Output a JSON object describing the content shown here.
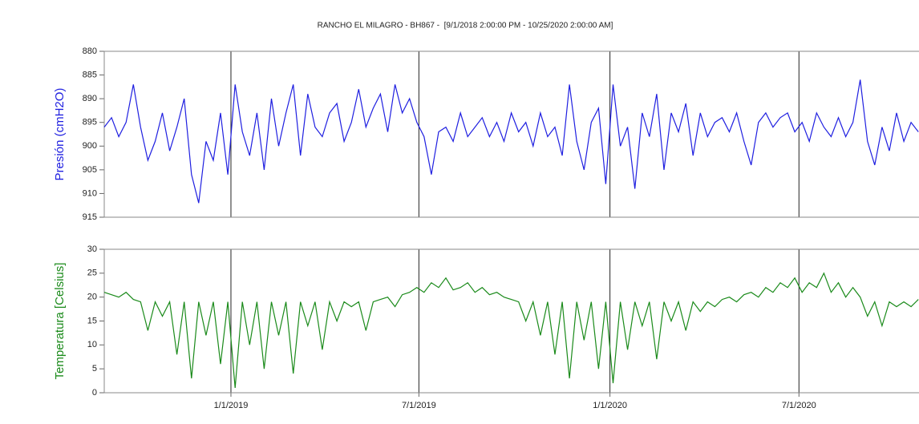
{
  "chart_data": {
    "type": "line",
    "title": "RANCHO EL MILAGRO - BH867 -  [9/1/2018 2:00:00 PM - 10/25/2020 2:00:00 AM]",
    "xlim": [
      "2018-09-01",
      "2020-10-25"
    ],
    "xticks": [
      {
        "value": "2019-01-01",
        "label": "1/1/2019"
      },
      {
        "value": "2019-07-01",
        "label": "7/1/2019"
      },
      {
        "value": "2020-01-01",
        "label": "1/1/2020"
      },
      {
        "value": "2020-07-01",
        "label": "7/1/2020"
      }
    ],
    "x": [
      "2018-09-01",
      "2018-09-08",
      "2018-09-15",
      "2018-09-22",
      "2018-09-29",
      "2018-10-06",
      "2018-10-13",
      "2018-10-20",
      "2018-10-27",
      "2018-11-03",
      "2018-11-10",
      "2018-11-17",
      "2018-11-24",
      "2018-12-01",
      "2018-12-08",
      "2018-12-15",
      "2018-12-22",
      "2018-12-29",
      "2019-01-05",
      "2019-01-12",
      "2019-01-19",
      "2019-01-26",
      "2019-02-02",
      "2019-02-09",
      "2019-02-16",
      "2019-02-23",
      "2019-03-02",
      "2019-03-09",
      "2019-03-16",
      "2019-03-23",
      "2019-03-30",
      "2019-04-06",
      "2019-04-13",
      "2019-04-20",
      "2019-04-27",
      "2019-05-04",
      "2019-05-11",
      "2019-05-18",
      "2019-05-25",
      "2019-06-01",
      "2019-06-08",
      "2019-06-15",
      "2019-06-22",
      "2019-06-29",
      "2019-07-06",
      "2019-07-13",
      "2019-07-20",
      "2019-07-27",
      "2019-08-03",
      "2019-08-10",
      "2019-08-17",
      "2019-08-24",
      "2019-08-31",
      "2019-09-07",
      "2019-09-14",
      "2019-09-21",
      "2019-09-28",
      "2019-10-05",
      "2019-10-12",
      "2019-10-19",
      "2019-10-26",
      "2019-11-02",
      "2019-11-09",
      "2019-11-16",
      "2019-11-23",
      "2019-11-30",
      "2019-12-07",
      "2019-12-14",
      "2019-12-21",
      "2019-12-28",
      "2020-01-04",
      "2020-01-11",
      "2020-01-18",
      "2020-01-25",
      "2020-02-01",
      "2020-02-08",
      "2020-02-15",
      "2020-02-22",
      "2020-02-29",
      "2020-03-07",
      "2020-03-14",
      "2020-03-21",
      "2020-03-28",
      "2020-04-04",
      "2020-04-11",
      "2020-04-18",
      "2020-04-25",
      "2020-05-02",
      "2020-05-09",
      "2020-05-16",
      "2020-05-23",
      "2020-05-30",
      "2020-06-06",
      "2020-06-13",
      "2020-06-20",
      "2020-06-27",
      "2020-07-04",
      "2020-07-11",
      "2020-07-18",
      "2020-07-25",
      "2020-08-01",
      "2020-08-08",
      "2020-08-15",
      "2020-08-22",
      "2020-08-29",
      "2020-09-05",
      "2020-09-12",
      "2020-09-19",
      "2020-09-26",
      "2020-10-03",
      "2020-10-10",
      "2020-10-17",
      "2020-10-24"
    ],
    "panels": [
      {
        "ylabel": "Presión (cmH2O)",
        "ylim": [
          915,
          880
        ],
        "yticks": [
          880,
          885,
          890,
          895,
          900,
          905,
          910,
          915
        ],
        "series": [
          {
            "color": "#1f1fe0",
            "values": [
              896,
              894,
              898,
              895,
              887,
              896,
              903,
              899,
              893,
              901,
              896,
              890,
              906,
              912,
              899,
              903,
              893,
              906,
              887,
              897,
              902,
              893,
              905,
              890,
              900,
              893,
              887,
              902,
              889,
              896,
              898,
              893,
              891,
              899,
              895,
              888,
              896,
              892,
              889,
              897,
              887,
              893,
              890,
              895,
              898,
              906,
              897,
              896,
              899,
              893,
              898,
              896,
              894,
              898,
              895,
              899,
              893,
              897,
              895,
              900,
              893,
              898,
              896,
              902,
              887,
              899,
              905,
              895,
              892,
              908,
              887,
              900,
              896,
              909,
              893,
              898,
              889,
              905,
              893,
              897,
              891,
              902,
              893,
              898,
              895,
              894,
              897,
              893,
              899,
              904,
              895,
              893,
              896,
              894,
              893,
              897,
              895,
              899,
              893,
              896,
              898,
              894,
              898,
              895,
              886,
              899,
              904,
              896,
              901,
              893,
              899,
              895,
              897
            ]
          }
        ]
      },
      {
        "ylabel": "Temperatura [Celsius]",
        "ylim": [
          0,
          30
        ],
        "yticks": [
          0,
          5,
          10,
          15,
          20,
          25,
          30
        ],
        "series": [
          {
            "color": "#1a8a1a",
            "values": [
              21,
              20.5,
              20,
              21,
              19.5,
              19,
              13,
              19,
              16,
              19,
              8,
              19,
              3,
              19,
              12,
              19,
              6,
              19,
              1,
              19,
              10,
              19,
              5,
              19,
              12,
              19,
              4,
              19,
              14,
              19,
              9,
              19,
              15,
              19,
              18,
              19,
              13,
              19,
              19.5,
              20,
              18,
              20.5,
              21,
              22,
              21,
              23,
              22,
              24,
              21.5,
              22,
              23,
              21,
              22,
              20.5,
              21,
              20,
              19.5,
              19,
              15,
              19,
              12,
              19,
              8,
              19,
              3,
              19,
              11,
              19,
              5,
              19,
              2,
              19,
              9,
              19,
              14,
              19,
              7,
              19,
              15,
              19,
              13,
              19,
              17,
              19,
              18,
              19.5,
              20,
              19,
              20.5,
              21,
              20,
              22,
              21,
              23,
              22,
              24,
              21,
              23,
              22,
              25,
              21,
              23,
              20,
              22,
              20,
              16,
              19,
              14,
              19,
              18,
              19,
              18,
              19.5
            ]
          }
        ]
      }
    ]
  }
}
